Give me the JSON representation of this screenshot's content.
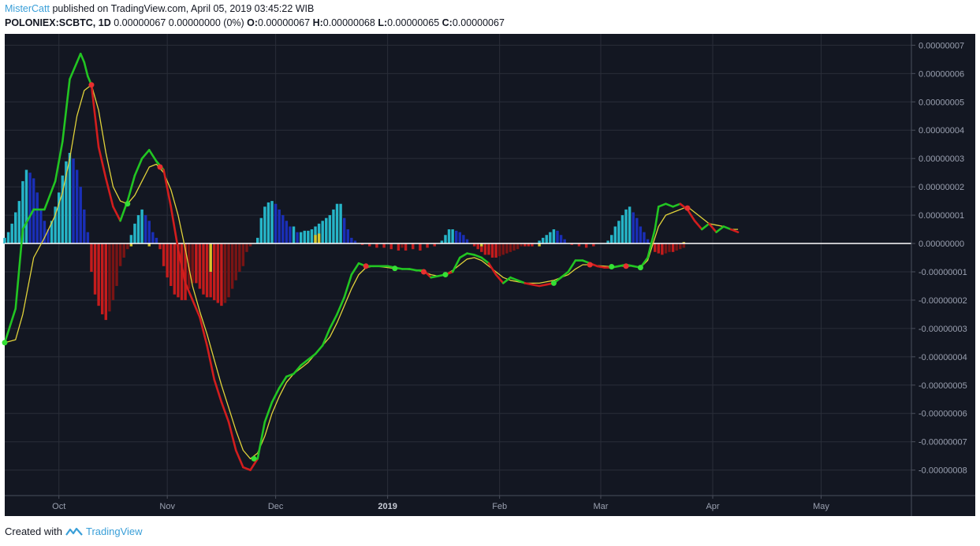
{
  "header": {
    "author": "MisterCatt",
    "published_text": "published on TradingView.com, April 05, 2019 03:45:22 WIB",
    "symbol": "POLONIEX:SCBTC, 1D",
    "last_price": "0.00000067",
    "change": "0.00000000 (0%)",
    "o_label": "O:",
    "o_value": "0.00000067",
    "h_label": "H:",
    "h_value": "0.00000068",
    "l_label": "L:",
    "l_value": "0.00000065",
    "c_label": "C:",
    "c_value": "0.00000067"
  },
  "footer": {
    "created_with": "Created with",
    "brand": "TradingView"
  },
  "colors": {
    "background": "#131722",
    "grid": "#2a2e39",
    "macd_up": "#22c522",
    "macd_down": "#d21d1d",
    "signal": "#e0d23a",
    "hist_up_strong": "#26b5c8",
    "hist_up_weak": "#1a2fb8",
    "hist_down_strong": "#c41c1c",
    "hist_down_weak": "#7a1414",
    "hist_flat": "#d6c62c",
    "zero_line": "#ffffff"
  },
  "chart_data": {
    "type": "line",
    "indicator": "MACD",
    "x_unit": "day_index_from_2018-09-16",
    "ylim": [
      -8.9e-09,
      7.4e-09
    ],
    "y_ticks": [
      "0.00000007",
      "0.00000006",
      "0.00000005",
      "0.00000004",
      "0.00000003",
      "0.00000002",
      "0.00000001",
      "0.00000000",
      "-0.00000001",
      "-0.00000002",
      "-0.00000003",
      "-0.00000004",
      "-0.00000005",
      "-0.00000006",
      "-0.00000007",
      "-0.00000008"
    ],
    "y_tick_values": [
      7,
      6,
      5,
      4,
      3,
      2,
      1,
      0,
      -1,
      -2,
      -3,
      -4,
      -5,
      -6,
      -7,
      -8
    ],
    "y_scale": 1e-09,
    "x_ticks": [
      {
        "label": "Oct",
        "x": 15,
        "bold": false
      },
      {
        "label": "Nov",
        "x": 45,
        "bold": false
      },
      {
        "label": "Dec",
        "x": 75,
        "bold": false
      },
      {
        "label": "2019",
        "x": 106,
        "bold": true
      },
      {
        "label": "Feb",
        "x": 137,
        "bold": false
      },
      {
        "label": "Mar",
        "x": 165,
        "bold": false
      },
      {
        "label": "Apr",
        "x": 196,
        "bold": false
      },
      {
        "label": "May",
        "x": 226,
        "bold": false
      }
    ],
    "xlim": [
      0,
      251
    ],
    "macd": [
      [
        0,
        -3.5
      ],
      [
        3,
        -2.3
      ],
      [
        5,
        0.5
      ],
      [
        8,
        1.2
      ],
      [
        11,
        1.2
      ],
      [
        14,
        2.2
      ],
      [
        16,
        3.6
      ],
      [
        18,
        5.8
      ],
      [
        20,
        6.4
      ],
      [
        21,
        6.7
      ],
      [
        22,
        6.4
      ],
      [
        23,
        5.9
      ],
      [
        24,
        5.6
      ],
      [
        26,
        3.4
      ],
      [
        28,
        2.3
      ],
      [
        30,
        1.3
      ],
      [
        32,
        0.8
      ],
      [
        34,
        1.5
      ],
      [
        36,
        2.4
      ],
      [
        38,
        3.0
      ],
      [
        40,
        3.3
      ],
      [
        42,
        2.9
      ],
      [
        44,
        2.6
      ],
      [
        46,
        1.3
      ],
      [
        48,
        -0.2
      ],
      [
        50,
        -1.4
      ],
      [
        52,
        -2.0
      ],
      [
        54,
        -2.6
      ],
      [
        56,
        -3.6
      ],
      [
        58,
        -4.8
      ],
      [
        60,
        -5.6
      ],
      [
        62,
        -6.3
      ],
      [
        64,
        -7.3
      ],
      [
        66,
        -7.9
      ],
      [
        68,
        -8.0
      ],
      [
        70,
        -7.6
      ],
      [
        72,
        -6.3
      ],
      [
        74,
        -5.6
      ],
      [
        76,
        -5.1
      ],
      [
        78,
        -4.7
      ],
      [
        80,
        -4.6
      ],
      [
        82,
        -4.3
      ],
      [
        84,
        -4.1
      ],
      [
        86,
        -3.9
      ],
      [
        88,
        -3.6
      ],
      [
        90,
        -3.0
      ],
      [
        92,
        -2.5
      ],
      [
        94,
        -1.9
      ],
      [
        96,
        -1.1
      ],
      [
        98,
        -0.7
      ],
      [
        100,
        -0.8
      ],
      [
        102,
        -0.8
      ],
      [
        104,
        -0.8
      ],
      [
        106,
        -0.8
      ],
      [
        108,
        -0.85
      ],
      [
        110,
        -0.9
      ],
      [
        112,
        -0.9
      ],
      [
        114,
        -0.95
      ],
      [
        116,
        -0.95
      ],
      [
        118,
        -1.2
      ],
      [
        120,
        -1.15
      ],
      [
        122,
        -1.1
      ],
      [
        124,
        -1.0
      ],
      [
        126,
        -0.5
      ],
      [
        128,
        -0.35
      ],
      [
        130,
        -0.4
      ],
      [
        132,
        -0.5
      ],
      [
        134,
        -0.7
      ],
      [
        136,
        -1.1
      ],
      [
        138,
        -1.4
      ],
      [
        140,
        -1.2
      ],
      [
        142,
        -1.3
      ],
      [
        144,
        -1.4
      ],
      [
        146,
        -1.45
      ],
      [
        148,
        -1.5
      ],
      [
        150,
        -1.45
      ],
      [
        152,
        -1.4
      ],
      [
        154,
        -1.2
      ],
      [
        156,
        -1.0
      ],
      [
        158,
        -0.6
      ],
      [
        160,
        -0.6
      ],
      [
        162,
        -0.7
      ],
      [
        164,
        -0.8
      ],
      [
        166,
        -0.85
      ],
      [
        168,
        -0.85
      ],
      [
        170,
        -0.8
      ],
      [
        172,
        -0.75
      ],
      [
        174,
        -0.8
      ],
      [
        176,
        -0.85
      ],
      [
        178,
        -0.5
      ],
      [
        180,
        0.5
      ],
      [
        181,
        1.3
      ],
      [
        183,
        1.4
      ],
      [
        185,
        1.3
      ],
      [
        187,
        1.4
      ],
      [
        189,
        1.2
      ],
      [
        191,
        0.8
      ],
      [
        193,
        0.5
      ],
      [
        195,
        0.7
      ],
      [
        197,
        0.4
      ],
      [
        199,
        0.6
      ],
      [
        201,
        0.5
      ],
      [
        203,
        0.4
      ]
    ],
    "signal": [
      [
        0,
        -3.5
      ],
      [
        3,
        -3.4
      ],
      [
        5,
        -2.5
      ],
      [
        8,
        -0.5
      ],
      [
        11,
        0.2
      ],
      [
        14,
        1.0
      ],
      [
        16,
        1.8
      ],
      [
        18,
        3.0
      ],
      [
        20,
        4.5
      ],
      [
        22,
        5.4
      ],
      [
        24,
        5.6
      ],
      [
        26,
        4.7
      ],
      [
        28,
        3.2
      ],
      [
        30,
        2.0
      ],
      [
        32,
        1.5
      ],
      [
        34,
        1.4
      ],
      [
        36,
        1.7
      ],
      [
        38,
        2.2
      ],
      [
        40,
        2.7
      ],
      [
        42,
        2.8
      ],
      [
        44,
        2.5
      ],
      [
        46,
        1.9
      ],
      [
        48,
        1.0
      ],
      [
        50,
        -0.2
      ],
      [
        52,
        -1.5
      ],
      [
        54,
        -2.4
      ],
      [
        56,
        -3.2
      ],
      [
        58,
        -4.1
      ],
      [
        60,
        -5.0
      ],
      [
        62,
        -5.8
      ],
      [
        64,
        -6.6
      ],
      [
        66,
        -7.3
      ],
      [
        68,
        -7.6
      ],
      [
        70,
        -7.4
      ],
      [
        72,
        -6.8
      ],
      [
        74,
        -6.0
      ],
      [
        76,
        -5.4
      ],
      [
        78,
        -4.9
      ],
      [
        80,
        -4.6
      ],
      [
        82,
        -4.4
      ],
      [
        84,
        -4.2
      ],
      [
        86,
        -3.9
      ],
      [
        88,
        -3.6
      ],
      [
        90,
        -3.3
      ],
      [
        92,
        -2.8
      ],
      [
        94,
        -2.2
      ],
      [
        96,
        -1.6
      ],
      [
        98,
        -1.1
      ],
      [
        100,
        -0.85
      ],
      [
        102,
        -0.8
      ],
      [
        104,
        -0.82
      ],
      [
        106,
        -0.85
      ],
      [
        108,
        -0.88
      ],
      [
        110,
        -0.9
      ],
      [
        112,
        -0.92
      ],
      [
        114,
        -0.95
      ],
      [
        116,
        -1.0
      ],
      [
        118,
        -1.1
      ],
      [
        120,
        -1.15
      ],
      [
        122,
        -1.1
      ],
      [
        124,
        -0.95
      ],
      [
        126,
        -0.75
      ],
      [
        128,
        -0.55
      ],
      [
        130,
        -0.5
      ],
      [
        132,
        -0.6
      ],
      [
        134,
        -0.8
      ],
      [
        136,
        -1.0
      ],
      [
        138,
        -1.2
      ],
      [
        140,
        -1.3
      ],
      [
        142,
        -1.35
      ],
      [
        144,
        -1.4
      ],
      [
        146,
        -1.4
      ],
      [
        148,
        -1.4
      ],
      [
        150,
        -1.35
      ],
      [
        152,
        -1.3
      ],
      [
        154,
        -1.2
      ],
      [
        156,
        -1.1
      ],
      [
        158,
        -0.9
      ],
      [
        160,
        -0.75
      ],
      [
        162,
        -0.75
      ],
      [
        164,
        -0.78
      ],
      [
        166,
        -0.8
      ],
      [
        168,
        -0.82
      ],
      [
        170,
        -0.8
      ],
      [
        172,
        -0.8
      ],
      [
        174,
        -0.8
      ],
      [
        176,
        -0.85
      ],
      [
        178,
        -0.6
      ],
      [
        180,
        0.2
      ],
      [
        181,
        0.6
      ],
      [
        183,
        1.0
      ],
      [
        185,
        1.1
      ],
      [
        187,
        1.2
      ],
      [
        189,
        1.3
      ],
      [
        191,
        1.1
      ],
      [
        193,
        0.9
      ],
      [
        195,
        0.7
      ],
      [
        197,
        0.65
      ],
      [
        199,
        0.6
      ],
      [
        201,
        0.5
      ],
      [
        203,
        0.5
      ]
    ],
    "histogram": [
      [
        0,
        0.2
      ],
      [
        1,
        0.4
      ],
      [
        2,
        0.7
      ],
      [
        3,
        1.1
      ],
      [
        4,
        1.5
      ],
      [
        5,
        2.2
      ],
      [
        6,
        2.6
      ],
      [
        7,
        2.5
      ],
      [
        8,
        2.3
      ],
      [
        9,
        1.8
      ],
      [
        10,
        1.2
      ],
      [
        11,
        0.8
      ],
      [
        12,
        0.5
      ],
      [
        13,
        0.8
      ],
      [
        14,
        1.3
      ],
      [
        15,
        1.8
      ],
      [
        16,
        2.4
      ],
      [
        17,
        2.9
      ],
      [
        18,
        3.2
      ],
      [
        19,
        3.0
      ],
      [
        20,
        2.6
      ],
      [
        21,
        2.0
      ],
      [
        22,
        1.2
      ],
      [
        23,
        0.4
      ],
      [
        24,
        -1.0
      ],
      [
        25,
        -1.8
      ],
      [
        26,
        -2.2
      ],
      [
        27,
        -2.5
      ],
      [
        28,
        -2.7
      ],
      [
        29,
        -2.4
      ],
      [
        30,
        -2.0
      ],
      [
        31,
        -1.5
      ],
      [
        32,
        -0.8
      ],
      [
        33,
        -0.5
      ],
      [
        34,
        -0.2
      ],
      [
        35,
        0.3
      ],
      [
        36,
        0.7
      ],
      [
        37,
        1.0
      ],
      [
        38,
        1.2
      ],
      [
        39,
        1.0
      ],
      [
        40,
        0.8
      ],
      [
        41,
        0.4
      ],
      [
        42,
        0.2
      ],
      [
        43,
        -0.2
      ],
      [
        44,
        -0.8
      ],
      [
        45,
        -1.2
      ],
      [
        46,
        -1.5
      ],
      [
        47,
        -1.8
      ],
      [
        48,
        -1.9
      ],
      [
        49,
        -2.0
      ],
      [
        50,
        -2.0
      ],
      [
        51,
        -1.6
      ],
      [
        52,
        -1.4
      ],
      [
        53,
        -1.4
      ],
      [
        54,
        -1.6
      ],
      [
        55,
        -1.8
      ],
      [
        56,
        -1.9
      ],
      [
        57,
        -1.9
      ],
      [
        58,
        -2.0
      ],
      [
        59,
        -2.1
      ],
      [
        60,
        -2.2
      ],
      [
        61,
        -2.1
      ],
      [
        62,
        -1.9
      ],
      [
        63,
        -1.6
      ],
      [
        64,
        -1.3
      ],
      [
        65,
        -1.0
      ],
      [
        66,
        -0.8
      ],
      [
        67,
        -0.3
      ],
      [
        68,
        -0.1
      ],
      [
        70,
        0.2
      ],
      [
        71,
        0.9
      ],
      [
        72,
        1.3
      ],
      [
        73,
        1.45
      ],
      [
        74,
        1.5
      ],
      [
        75,
        1.4
      ],
      [
        76,
        1.2
      ],
      [
        77,
        1.0
      ],
      [
        78,
        0.8
      ],
      [
        79,
        0.6
      ],
      [
        80,
        0.6
      ],
      [
        81,
        0.4
      ],
      [
        82,
        0.4
      ],
      [
        83,
        0.45
      ],
      [
        84,
        0.45
      ],
      [
        85,
        0.5
      ],
      [
        86,
        0.6
      ],
      [
        87,
        0.7
      ],
      [
        88,
        0.8
      ],
      [
        89,
        0.9
      ],
      [
        90,
        1.0
      ],
      [
        91,
        1.2
      ],
      [
        92,
        1.4
      ],
      [
        93,
        1.4
      ],
      [
        94,
        0.9
      ],
      [
        95,
        0.5
      ],
      [
        96,
        0.2
      ],
      [
        97,
        0.1
      ],
      [
        99,
        -0.05
      ],
      [
        101,
        -0.1
      ],
      [
        103,
        -0.15
      ],
      [
        105,
        -0.15
      ],
      [
        107,
        -0.2
      ],
      [
        109,
        -0.25
      ],
      [
        110,
        -0.15
      ],
      [
        111,
        -0.25
      ],
      [
        113,
        -0.2
      ],
      [
        115,
        -0.25
      ],
      [
        117,
        -0.15
      ],
      [
        119,
        -0.1
      ],
      [
        121,
        0.1
      ],
      [
        122,
        0.3
      ],
      [
        123,
        0.5
      ],
      [
        124,
        0.5
      ],
      [
        125,
        0.45
      ],
      [
        126,
        0.4
      ],
      [
        127,
        0.3
      ],
      [
        128,
        0.15
      ],
      [
        130,
        -0.1
      ],
      [
        131,
        -0.2
      ],
      [
        132,
        -0.3
      ],
      [
        133,
        -0.4
      ],
      [
        134,
        -0.4
      ],
      [
        135,
        -0.5
      ],
      [
        136,
        -0.5
      ],
      [
        137,
        -0.45
      ],
      [
        138,
        -0.4
      ],
      [
        139,
        -0.35
      ],
      [
        140,
        -0.3
      ],
      [
        141,
        -0.25
      ],
      [
        142,
        -0.2
      ],
      [
        143,
        -0.1
      ],
      [
        144,
        -0.1
      ],
      [
        145,
        -0.1
      ],
      [
        146,
        -0.1
      ],
      [
        148,
        0.1
      ],
      [
        149,
        0.2
      ],
      [
        150,
        0.3
      ],
      [
        151,
        0.4
      ],
      [
        152,
        0.5
      ],
      [
        153,
        0.45
      ],
      [
        154,
        0.3
      ],
      [
        155,
        0.15
      ],
      [
        157,
        -0.05
      ],
      [
        159,
        -0.1
      ],
      [
        161,
        -0.15
      ],
      [
        163,
        -0.1
      ],
      [
        167,
        0.1
      ],
      [
        168,
        0.3
      ],
      [
        169,
        0.6
      ],
      [
        170,
        0.8
      ],
      [
        171,
        1.0
      ],
      [
        172,
        1.2
      ],
      [
        173,
        1.3
      ],
      [
        174,
        1.1
      ],
      [
        175,
        0.9
      ],
      [
        176,
        0.6
      ],
      [
        177,
        0.4
      ],
      [
        178,
        0.15
      ],
      [
        179,
        -0.1
      ],
      [
        180,
        -0.3
      ],
      [
        181,
        -0.35
      ],
      [
        182,
        -0.4
      ],
      [
        183,
        -0.35
      ],
      [
        184,
        -0.3
      ],
      [
        185,
        -0.3
      ],
      [
        186,
        -0.25
      ],
      [
        187,
        -0.2
      ],
      [
        188,
        -0.15
      ]
    ],
    "flat_bars": [
      [
        35,
        -0.1
      ],
      [
        40,
        -0.1
      ],
      [
        57,
        -1.0
      ],
      [
        86,
        0.3
      ],
      [
        87,
        0.35
      ],
      [
        132,
        -0.1
      ],
      [
        148,
        -0.1
      ],
      [
        188,
        0.05
      ]
    ],
    "markers": [
      {
        "x": 0,
        "y": -3.5,
        "kind": "up"
      },
      {
        "x": 24,
        "y": 5.6,
        "kind": "down"
      },
      {
        "x": 34,
        "y": 1.4,
        "kind": "up"
      },
      {
        "x": 43,
        "y": 2.7,
        "kind": "down"
      },
      {
        "x": 69,
        "y": -7.6,
        "kind": "up"
      },
      {
        "x": 100,
        "y": -0.8,
        "kind": "down"
      },
      {
        "x": 108,
        "y": -0.88,
        "kind": "up"
      },
      {
        "x": 116,
        "y": -1.0,
        "kind": "down"
      },
      {
        "x": 122,
        "y": -1.1,
        "kind": "up"
      },
      {
        "x": 152,
        "y": -1.4,
        "kind": "up"
      },
      {
        "x": 162,
        "y": -0.75,
        "kind": "down"
      },
      {
        "x": 168,
        "y": -0.82,
        "kind": "up"
      },
      {
        "x": 172,
        "y": -0.8,
        "kind": "down"
      },
      {
        "x": 176,
        "y": -0.85,
        "kind": "up"
      },
      {
        "x": 189,
        "y": 1.25,
        "kind": "down"
      }
    ]
  }
}
